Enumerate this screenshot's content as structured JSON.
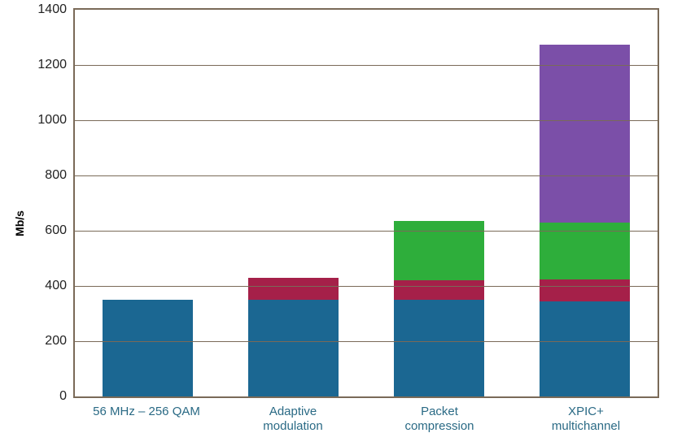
{
  "chart": {
    "type": "stacked-bar",
    "y_title": "Mb/s",
    "label_fontsize": 14,
    "tick_fontsize": 16,
    "xlabel_fontsize": 15,
    "xlabel_color": "#2a6a85",
    "ylim": [
      0,
      1400
    ],
    "ytick_step": 200,
    "yticks": [
      0,
      200,
      400,
      600,
      800,
      1000,
      1200,
      1400
    ],
    "grid_color": "#7a6a58",
    "border_color": "#7a6a58",
    "background_color": "#ffffff",
    "bar_width_ratio": 0.62,
    "categories": [
      {
        "label": "56 MHz – 256 QAM",
        "segments": [
          350
        ]
      },
      {
        "label": "Adaptive modulation",
        "segments": [
          350,
          80
        ]
      },
      {
        "label": "Packet compression",
        "segments": [
          350,
          70,
          215
        ]
      },
      {
        "label": "XPIC+ multichannel",
        "segments": [
          345,
          80,
          205,
          645
        ]
      }
    ],
    "segment_colors": [
      "#1b6792",
      "#a52049",
      "#2eae3b",
      "#7b4fa8"
    ]
  }
}
